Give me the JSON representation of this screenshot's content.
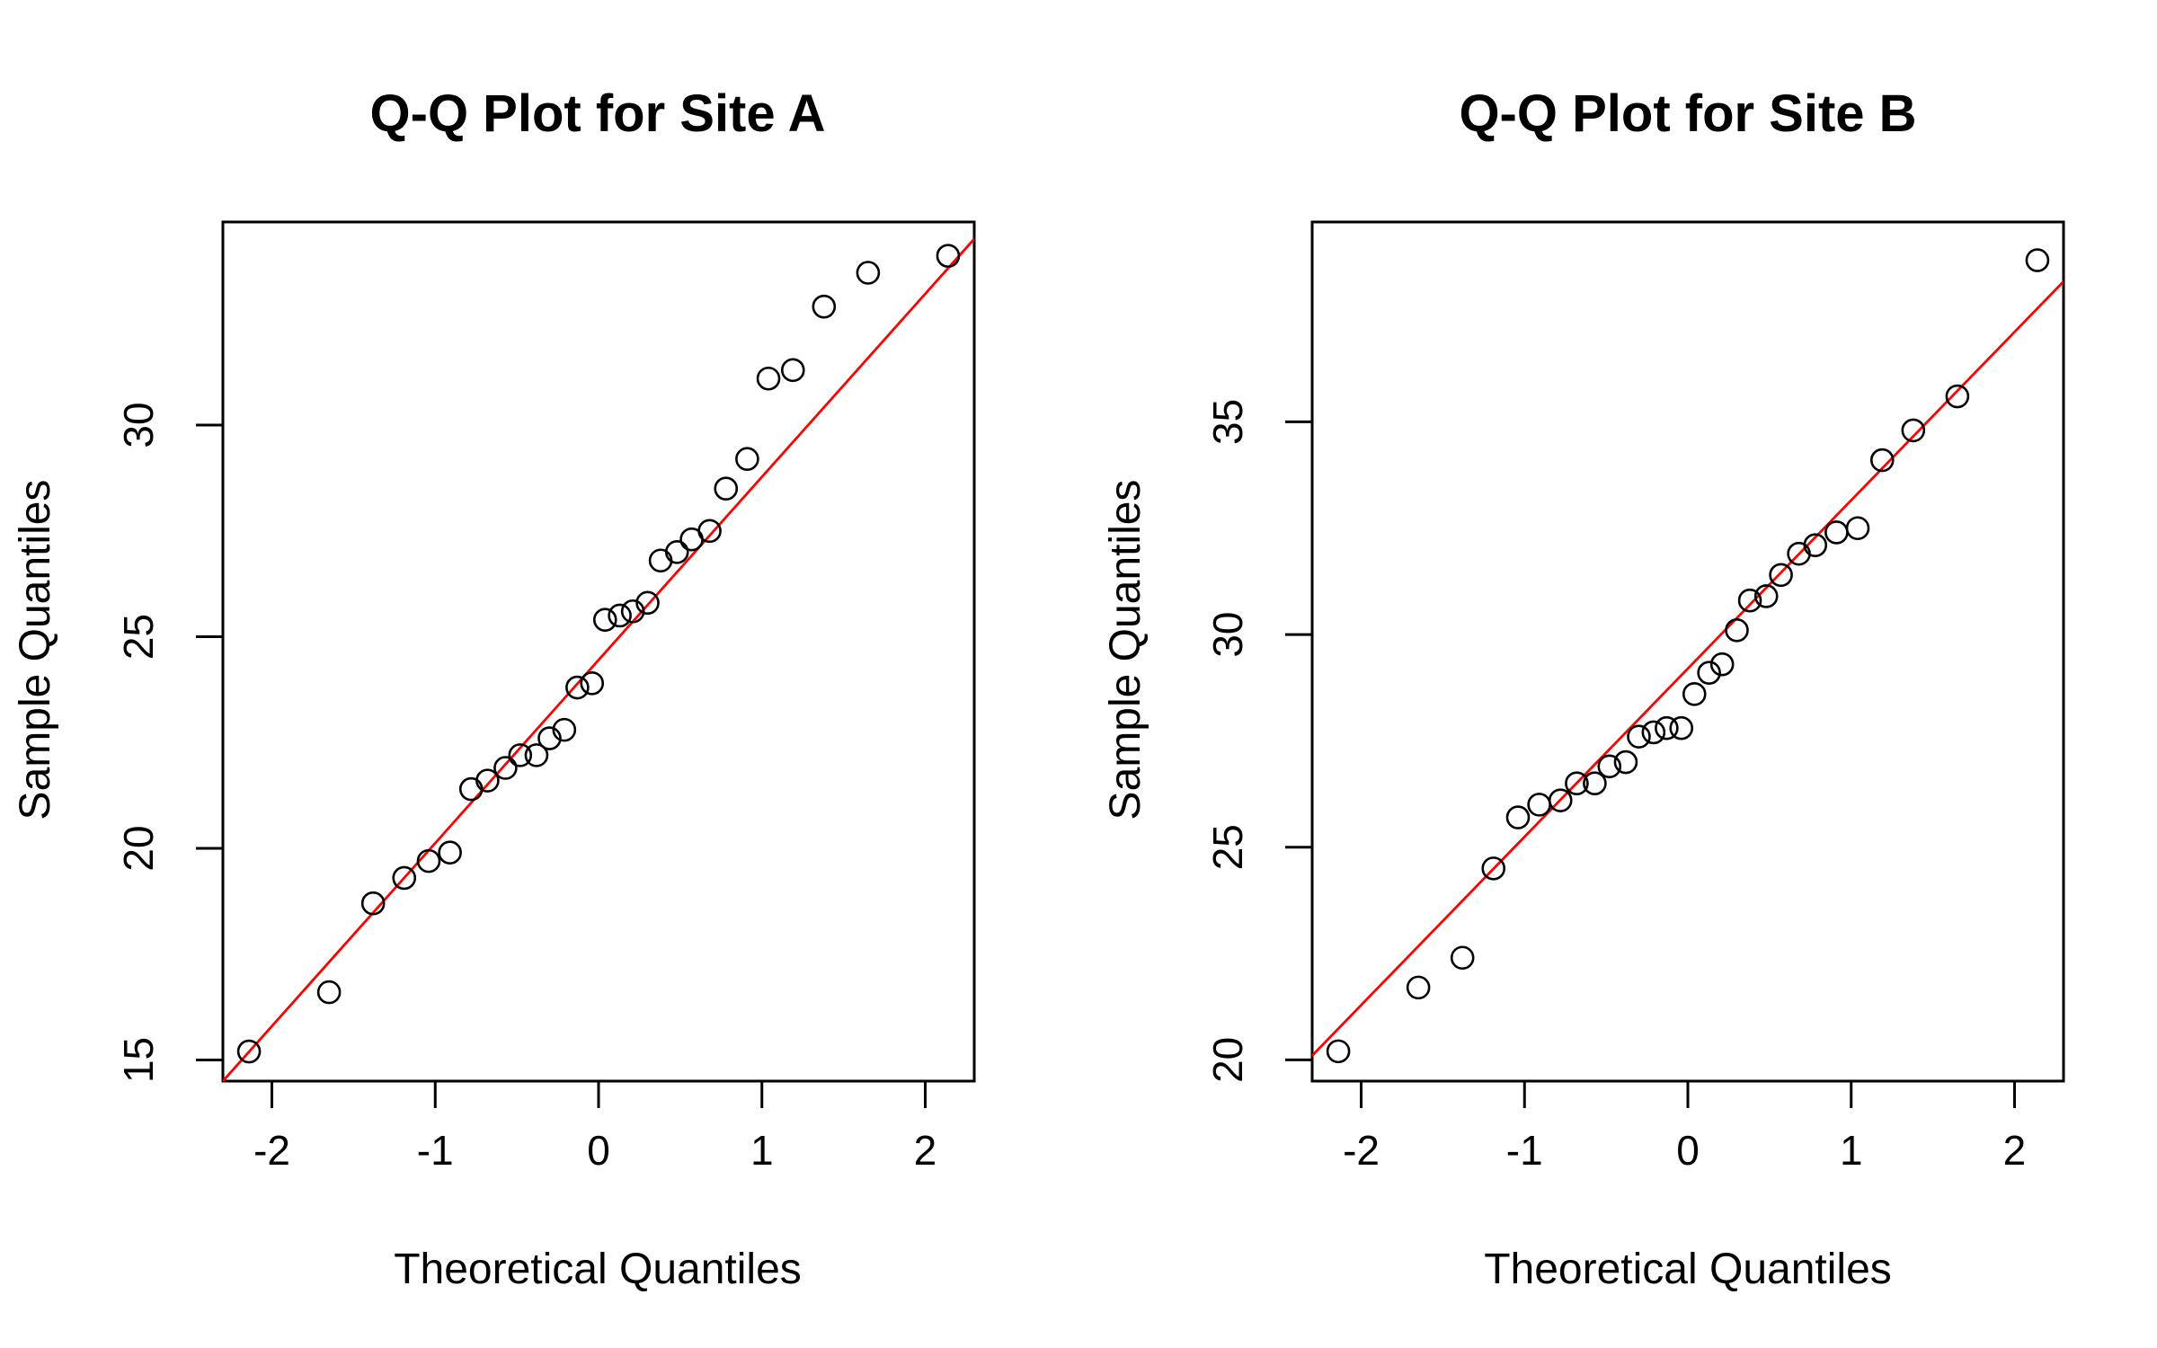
{
  "chart_data": [
    {
      "type": "scatter",
      "title": "Q-Q Plot for Site A",
      "xlabel": "Theoretical Quantiles",
      "ylabel": "Sample Quantiles",
      "xlim": [
        -2.3,
        2.3
      ],
      "ylim": [
        14.5,
        34.8
      ],
      "xticks": [
        -2,
        -1,
        0,
        1,
        2
      ],
      "yticks": [
        15,
        20,
        25,
        30
      ],
      "line_color": "#ff0000",
      "reference_line": {
        "x1": -2.3,
        "y1": 14.5,
        "x2": 2.3,
        "y2": 34.4
      },
      "points": [
        {
          "x": -2.14,
          "y": 15.2
        },
        {
          "x": -1.65,
          "y": 16.6
        },
        {
          "x": -1.38,
          "y": 18.7
        },
        {
          "x": -1.19,
          "y": 19.3
        },
        {
          "x": -1.04,
          "y": 19.7
        },
        {
          "x": -0.91,
          "y": 19.9
        },
        {
          "x": -0.78,
          "y": 21.4
        },
        {
          "x": -0.68,
          "y": 21.6
        },
        {
          "x": -0.57,
          "y": 21.9
        },
        {
          "x": -0.48,
          "y": 22.2
        },
        {
          "x": -0.38,
          "y": 22.2
        },
        {
          "x": -0.3,
          "y": 22.6
        },
        {
          "x": -0.21,
          "y": 22.8
        },
        {
          "x": -0.13,
          "y": 23.8
        },
        {
          "x": -0.04,
          "y": 23.9
        },
        {
          "x": 0.04,
          "y": 25.4
        },
        {
          "x": 0.13,
          "y": 25.5
        },
        {
          "x": 0.21,
          "y": 25.6
        },
        {
          "x": 0.3,
          "y": 25.8
        },
        {
          "x": 0.38,
          "y": 26.8
        },
        {
          "x": 0.48,
          "y": 27.0
        },
        {
          "x": 0.57,
          "y": 27.3
        },
        {
          "x": 0.68,
          "y": 27.5
        },
        {
          "x": 0.78,
          "y": 28.5
        },
        {
          "x": 0.91,
          "y": 29.2
        },
        {
          "x": 1.04,
          "y": 31.1
        },
        {
          "x": 1.19,
          "y": 31.3
        },
        {
          "x": 1.38,
          "y": 32.8
        },
        {
          "x": 1.65,
          "y": 33.6
        },
        {
          "x": 2.14,
          "y": 34.0
        }
      ]
    },
    {
      "type": "scatter",
      "title": "Q-Q Plot for Site B",
      "xlabel": "Theoretical Quantiles",
      "ylabel": "Sample Quantiles",
      "xlim": [
        -2.3,
        2.3
      ],
      "ylim": [
        19.5,
        39.7
      ],
      "xticks": [
        -2,
        -1,
        0,
        1,
        2
      ],
      "yticks": [
        20,
        25,
        30,
        35
      ],
      "line_color": "#ff0000",
      "reference_line": {
        "x1": -2.3,
        "y1": 20.1,
        "x2": 2.3,
        "y2": 38.3
      },
      "points": [
        {
          "x": -2.14,
          "y": 20.2
        },
        {
          "x": -1.65,
          "y": 21.7
        },
        {
          "x": -1.38,
          "y": 22.4
        },
        {
          "x": -1.19,
          "y": 24.5
        },
        {
          "x": -1.04,
          "y": 25.7
        },
        {
          "x": -0.91,
          "y": 26.0
        },
        {
          "x": -0.78,
          "y": 26.1
        },
        {
          "x": -0.68,
          "y": 26.5
        },
        {
          "x": -0.57,
          "y": 26.5
        },
        {
          "x": -0.48,
          "y": 26.9
        },
        {
          "x": -0.38,
          "y": 27.0
        },
        {
          "x": -0.3,
          "y": 27.6
        },
        {
          "x": -0.21,
          "y": 27.7
        },
        {
          "x": -0.13,
          "y": 27.8
        },
        {
          "x": -0.04,
          "y": 27.8
        },
        {
          "x": 0.04,
          "y": 28.6
        },
        {
          "x": 0.13,
          "y": 29.1
        },
        {
          "x": 0.21,
          "y": 29.3
        },
        {
          "x": 0.3,
          "y": 30.1
        },
        {
          "x": 0.38,
          "y": 30.8
        },
        {
          "x": 0.48,
          "y": 30.9
        },
        {
          "x": 0.57,
          "y": 31.4
        },
        {
          "x": 0.68,
          "y": 31.9
        },
        {
          "x": 0.78,
          "y": 32.1
        },
        {
          "x": 0.91,
          "y": 32.4
        },
        {
          "x": 1.04,
          "y": 32.5
        },
        {
          "x": 1.19,
          "y": 34.1
        },
        {
          "x": 1.38,
          "y": 34.8
        },
        {
          "x": 1.65,
          "y": 35.6
        },
        {
          "x": 2.14,
          "y": 38.8
        }
      ]
    }
  ]
}
